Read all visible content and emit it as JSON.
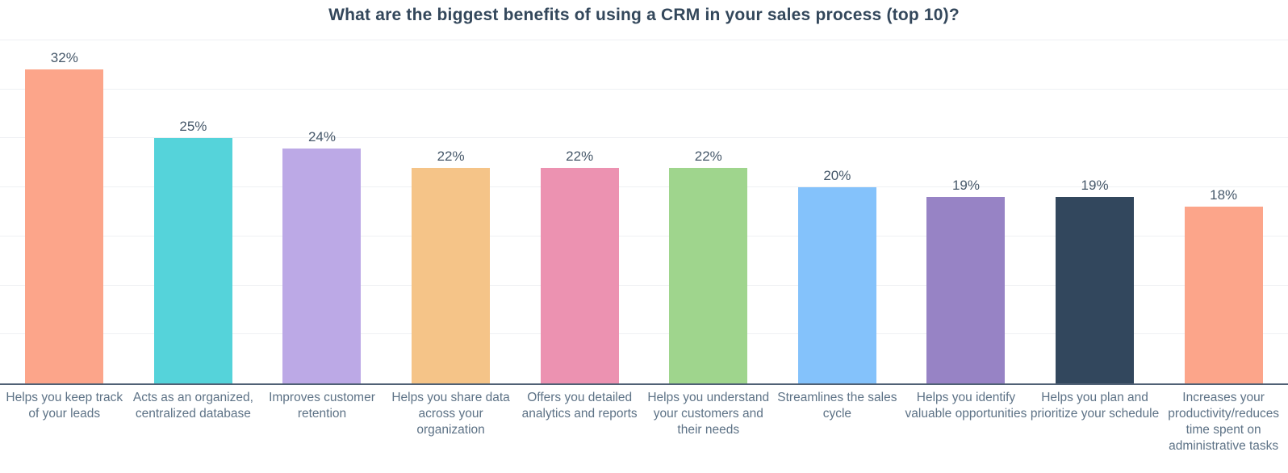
{
  "chart_data": {
    "type": "bar",
    "title": "What are the biggest benefits of using a CRM in your sales process (top 10)?",
    "categories": [
      "Helps you keep track of your leads",
      "Acts as an organized, centralized database",
      "Improves customer retention",
      "Helps you share data across your organization",
      "Offers you detailed analytics and reports",
      "Helps you understand your customers and their needs",
      "Streamlines the sales cycle",
      "Helps you identify valuable opportunities",
      "Helps you plan and prioritize your schedule",
      "Increases your productivity/reduces time spent on administrative tasks"
    ],
    "values": [
      32,
      25,
      24,
      22,
      22,
      22,
      20,
      19,
      19,
      18
    ],
    "value_labels": [
      "32%",
      "25%",
      "24%",
      "22%",
      "22%",
      "22%",
      "20%",
      "19%",
      "19%",
      "18%"
    ],
    "bar_colors": [
      "#FCA58A",
      "#55D3DA",
      "#BCA9E6",
      "#F5C488",
      "#EC92B1",
      "#9FD58D",
      "#84C2FB",
      "#9783C5",
      "#32475D",
      "#FCA58A"
    ],
    "xlabel": "",
    "ylabel": "",
    "ylim": [
      0,
      35
    ],
    "gridline_step": 5,
    "grid": true,
    "y_tick_labels_visible": false,
    "legend": "none"
  },
  "styles": {
    "background": "#ffffff",
    "title_color": "#33475b",
    "value_label_color": "#46586a",
    "category_label_color": "#5d7286",
    "gridline_color": "#eef0f3",
    "axis_line_color": "#506175"
  }
}
